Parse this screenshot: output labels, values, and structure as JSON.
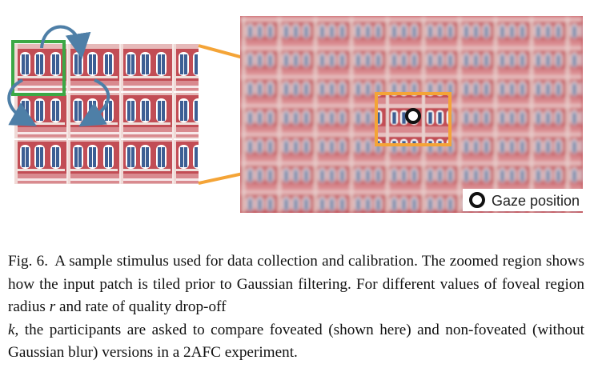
{
  "figure": {
    "legend": {
      "label": "Gaze position",
      "marker_fill": "#ffffff",
      "marker_stroke": "#111111"
    },
    "colors": {
      "connector": "#f4a437",
      "tile_outline": "#3ca845",
      "arrow": "#4e7fa7",
      "facade_red": "#c24d55",
      "window_blue": "#3d5f94"
    }
  },
  "caption": {
    "label": "Fig. 6.",
    "text_1": "A sample stimulus used for data collection and calibration. The zoomed region shows how the input patch is tiled prior to Gaussian filtering. For different values of foveal region radius",
    "var_r": "r",
    "text_2": "and rate of quality drop-off",
    "var_k": "k",
    "text_3": ", the participants are asked to compare foveated (shown here) and non-foveated (without Gaussian blur) versions in a 2AFC experiment."
  }
}
